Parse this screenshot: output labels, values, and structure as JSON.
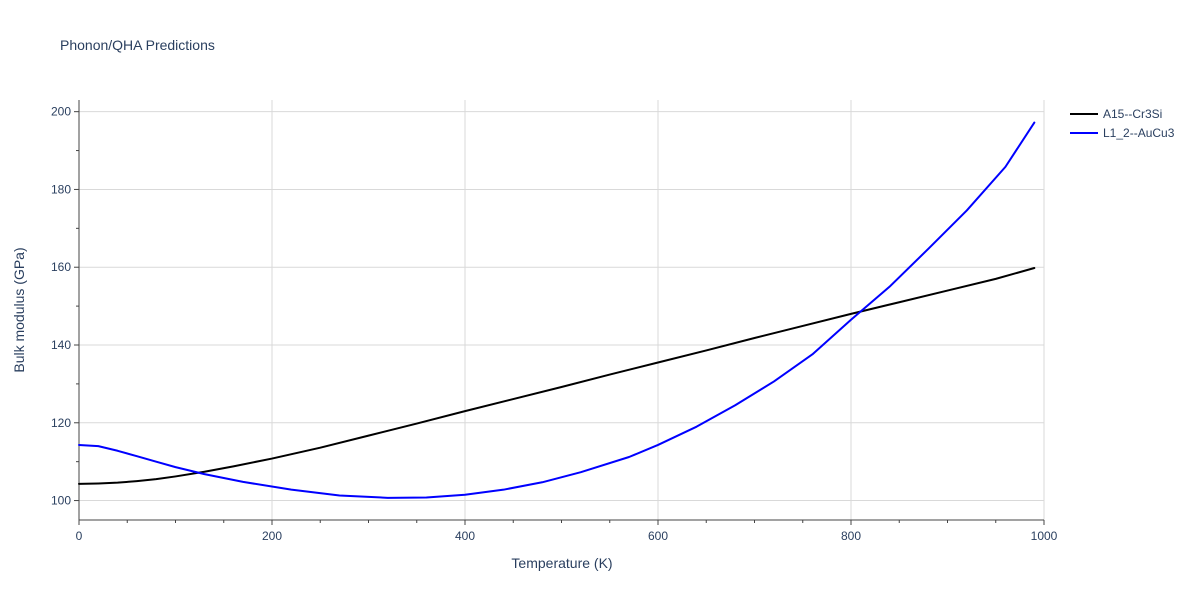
{
  "chart_data": {
    "type": "line",
    "title": "Phonon/QHA Predictions",
    "xlabel": "Temperature (K)",
    "ylabel": "Bulk modulus (GPa)",
    "xlim": [
      0,
      1000
    ],
    "ylim": [
      95,
      203
    ],
    "xticks": [
      0,
      200,
      400,
      600,
      800,
      1000
    ],
    "yticks": [
      100,
      120,
      140,
      160,
      180,
      200
    ],
    "grid": true,
    "legend_position": "top-right",
    "series": [
      {
        "name": "A15--Cr3Si",
        "color": "#000000",
        "x": [
          0,
          20,
          40,
          60,
          80,
          100,
          130,
          160,
          200,
          250,
          300,
          350,
          400,
          450,
          500,
          550,
          600,
          650,
          700,
          750,
          800,
          850,
          900,
          950,
          990
        ],
        "y": [
          104.3,
          104.4,
          104.6,
          105.0,
          105.5,
          106.2,
          107.4,
          108.8,
          110.8,
          113.6,
          116.7,
          119.8,
          123.0,
          126.1,
          129.2,
          132.4,
          135.5,
          138.6,
          141.8,
          144.9,
          148.0,
          151.0,
          154.0,
          157.0,
          159.8
        ]
      },
      {
        "name": "L1_2--AuCu3",
        "color": "#0000ff",
        "x": [
          0,
          20,
          40,
          60,
          80,
          100,
          130,
          170,
          220,
          270,
          320,
          360,
          400,
          440,
          480,
          520,
          570,
          600,
          640,
          680,
          720,
          760,
          800,
          840,
          880,
          920,
          960,
          990
        ],
        "y": [
          114.3,
          114.0,
          112.8,
          111.4,
          110.0,
          108.6,
          106.8,
          104.8,
          102.8,
          101.3,
          100.7,
          100.8,
          101.5,
          102.8,
          104.7,
          107.3,
          111.2,
          114.3,
          119.0,
          124.5,
          130.6,
          137.6,
          146.5,
          155.0,
          164.7,
          174.6,
          185.8,
          197.2
        ]
      }
    ]
  }
}
